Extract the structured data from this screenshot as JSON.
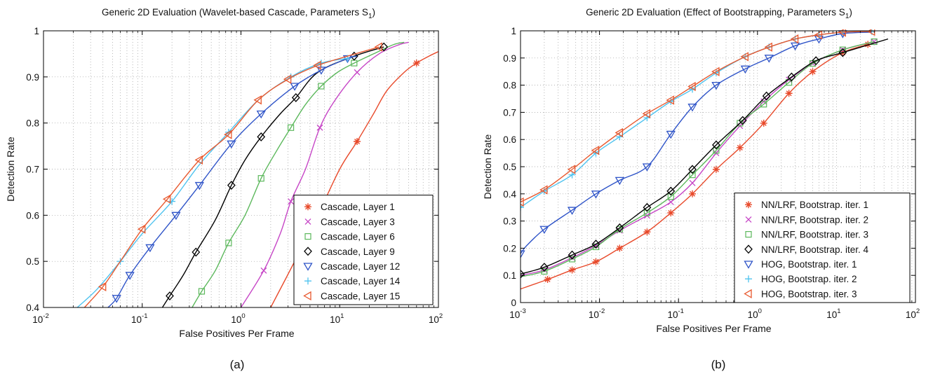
{
  "colors": {
    "red": "#e8492a",
    "magenta": "#c645c6",
    "green": "#5cb85c",
    "black": "#000000",
    "blue": "#2f54c8",
    "cyan": "#4fc3ef",
    "orange": "#e8592f"
  },
  "chart_data": [
    {
      "type": "line",
      "title": "Generic 2D Evaluation (Wavelet-based Cascade, Parameters S",
      "title_sub": "1",
      "title_end": ")",
      "xlabel": "False Positives Per Frame",
      "ylabel": "Detection Rate",
      "caption": "(a)",
      "x_scale": "log",
      "xlim": [
        0.01,
        100
      ],
      "ylim": [
        0.4,
        1
      ],
      "x_ticks": [
        {
          "base": "10",
          "exp": "-2"
        },
        {
          "base": "10",
          "exp": "-1"
        },
        {
          "base": "10",
          "exp": "0"
        },
        {
          "base": "10",
          "exp": "1"
        },
        {
          "base": "10",
          "exp": "2"
        }
      ],
      "y_ticks": [
        "0.4",
        "0.5",
        "0.6",
        "0.7",
        "0.8",
        "0.9",
        "1"
      ],
      "grid": "on (dotted)",
      "legend_position": "bottom-right",
      "series": [
        {
          "name": "Cascade, Layer 1",
          "color": "red",
          "marker": "asterisk",
          "x": [
            2.0,
            3.5,
            6.0,
            10,
            15,
            22,
            30,
            45,
            60,
            80,
            100
          ],
          "y": [
            0.4,
            0.5,
            0.6,
            0.7,
            0.76,
            0.82,
            0.87,
            0.91,
            0.93,
            0.945,
            0.955
          ]
        },
        {
          "name": "Cascade, Layer 3",
          "color": "magenta",
          "marker": "x",
          "x": [
            1.0,
            1.7,
            2.5,
            3.2,
            4.5,
            6.3,
            9,
            15,
            25,
            40,
            50
          ],
          "y": [
            0.4,
            0.48,
            0.56,
            0.63,
            0.7,
            0.79,
            0.85,
            0.91,
            0.95,
            0.97,
            0.975
          ]
        },
        {
          "name": "Cascade, Layer 6",
          "color": "green",
          "marker": "square",
          "x": [
            0.32,
            0.4,
            0.55,
            0.75,
            1.1,
            1.6,
            2.3,
            3.2,
            4.5,
            6.5,
            9.5,
            14,
            22,
            35,
            45
          ],
          "y": [
            0.4,
            0.435,
            0.48,
            0.54,
            0.6,
            0.68,
            0.74,
            0.79,
            0.84,
            0.88,
            0.91,
            0.93,
            0.95,
            0.97,
            0.975
          ]
        },
        {
          "name": "Cascade, Layer 9",
          "color": "black",
          "marker": "diamond",
          "x": [
            0.16,
            0.19,
            0.26,
            0.35,
            0.55,
            0.8,
            1.1,
            1.6,
            2.5,
            3.6,
            6.0,
            14,
            28
          ],
          "y": [
            0.4,
            0.425,
            0.47,
            0.52,
            0.59,
            0.665,
            0.72,
            0.77,
            0.82,
            0.855,
            0.91,
            0.945,
            0.965
          ]
        },
        {
          "name": "Cascade, Layer 12",
          "color": "blue",
          "marker": "triangle-down",
          "x": [
            0.045,
            0.055,
            0.075,
            0.12,
            0.22,
            0.38,
            0.8,
            1.6,
            3.5,
            6.5,
            12,
            15
          ],
          "y": [
            0.4,
            0.42,
            0.47,
            0.53,
            0.6,
            0.665,
            0.755,
            0.82,
            0.88,
            0.915,
            0.94,
            0.945
          ]
        },
        {
          "name": "Cascade, Layer 14",
          "color": "cyan",
          "marker": "plus",
          "x": [
            0.022,
            0.035,
            0.06,
            0.1,
            0.2,
            0.38,
            0.75,
            1.5,
            3.2,
            6.5,
            12
          ],
          "y": [
            0.4,
            0.44,
            0.5,
            0.56,
            0.63,
            0.71,
            0.78,
            0.85,
            0.9,
            0.93,
            0.94
          ]
        },
        {
          "name": "Cascade, Layer 15",
          "color": "orange",
          "marker": "triangle-left",
          "x": [
            0.026,
            0.04,
            0.06,
            0.1,
            0.18,
            0.38,
            0.75,
            1.5,
            3.0,
            6.0,
            12,
            25
          ],
          "y": [
            0.4,
            0.445,
            0.5,
            0.57,
            0.635,
            0.72,
            0.775,
            0.85,
            0.895,
            0.925,
            0.945,
            0.965
          ]
        }
      ],
      "markers_every": {
        "asterisk": [
          4,
          8
        ],
        "x": [
          3,
          5,
          7,
          1
        ],
        "square": [
          1,
          3,
          5,
          7,
          9,
          11
        ],
        "diamond": [
          1,
          3,
          5,
          7,
          9,
          11,
          12
        ],
        "triangle-down": [
          1,
          2,
          3,
          4,
          5,
          6,
          7,
          8,
          9,
          10
        ],
        "plus": [
          2,
          4,
          6,
          8,
          9,
          10
        ],
        "triangle-left": [
          1,
          3,
          4,
          5,
          6,
          7,
          8,
          9,
          11
        ]
      }
    },
    {
      "type": "line",
      "title": "Generic 2D Evaluation (Effect of Bootstrapping, Parameters S",
      "title_sub": "1",
      "title_end": ")",
      "xlabel": "False Positives Per Frame",
      "ylabel": "Detection Rate",
      "caption": "(b)",
      "x_scale": "log",
      "xlim": [
        0.001,
        100
      ],
      "ylim": [
        0,
        1
      ],
      "x_ticks": [
        {
          "base": "10",
          "exp": "-3"
        },
        {
          "base": "10",
          "exp": "-2"
        },
        {
          "base": "10",
          "exp": "-1"
        },
        {
          "base": "10",
          "exp": "0"
        },
        {
          "base": "10",
          "exp": "1"
        },
        {
          "base": "10",
          "exp": "2"
        }
      ],
      "y_ticks": [
        "0",
        "0.1",
        "0.2",
        "0.3",
        "0.4",
        "0.5",
        "0.6",
        "0.7",
        "0.8",
        "0.9",
        "1"
      ],
      "grid": "on (dotted)",
      "legend_position": "bottom-right",
      "series": [
        {
          "name": "NN/LRF, Bootstrap. iter. 1",
          "color": "red",
          "marker": "asterisk",
          "x": [
            0.001,
            0.0022,
            0.0045,
            0.009,
            0.018,
            0.04,
            0.08,
            0.15,
            0.3,
            0.6,
            1.2,
            2.5,
            5,
            12,
            25
          ],
          "y": [
            0.05,
            0.085,
            0.12,
            0.15,
            0.2,
            0.26,
            0.33,
            0.4,
            0.49,
            0.57,
            0.66,
            0.77,
            0.85,
            0.92,
            0.95
          ]
        },
        {
          "name": "NN/LRF, Bootstrap. iter. 2",
          "color": "magenta",
          "marker": "x",
          "x": [
            0.001,
            0.002,
            0.0045,
            0.009,
            0.018,
            0.04,
            0.08,
            0.15,
            0.3,
            0.6,
            1.2,
            2.5,
            5,
            12,
            30
          ],
          "y": [
            0.1,
            0.12,
            0.165,
            0.21,
            0.265,
            0.32,
            0.37,
            0.44,
            0.55,
            0.65,
            0.74,
            0.82,
            0.88,
            0.93,
            0.96
          ]
        },
        {
          "name": "NN/LRF, Bootstrap. iter. 3",
          "color": "green",
          "marker": "square",
          "x": [
            0.001,
            0.002,
            0.0045,
            0.009,
            0.018,
            0.04,
            0.08,
            0.15,
            0.3,
            0.6,
            1.2,
            2.5,
            5,
            12,
            30
          ],
          "y": [
            0.095,
            0.115,
            0.16,
            0.205,
            0.27,
            0.33,
            0.39,
            0.47,
            0.56,
            0.66,
            0.73,
            0.81,
            0.88,
            0.93,
            0.96
          ]
        },
        {
          "name": "NN/LRF, Bootstrap. iter. 4",
          "color": "black",
          "marker": "diamond",
          "x": [
            0.001,
            0.002,
            0.0045,
            0.009,
            0.018,
            0.04,
            0.08,
            0.15,
            0.3,
            0.65,
            1.3,
            2.7,
            5.5,
            12,
            45
          ],
          "y": [
            0.105,
            0.13,
            0.175,
            0.215,
            0.275,
            0.35,
            0.41,
            0.49,
            0.58,
            0.67,
            0.76,
            0.83,
            0.89,
            0.92,
            0.97
          ]
        },
        {
          "name": "HOG, Bootstrap. iter. 1",
          "color": "blue",
          "marker": "triangle-down",
          "x": [
            0.001,
            0.0012,
            0.002,
            0.0045,
            0.009,
            0.018,
            0.04,
            0.08,
            0.15,
            0.3,
            0.7,
            1.4,
            3,
            6,
            12,
            28
          ],
          "y": [
            0.18,
            0.21,
            0.27,
            0.34,
            0.4,
            0.45,
            0.5,
            0.62,
            0.72,
            0.8,
            0.86,
            0.9,
            0.945,
            0.97,
            0.99,
            0.995
          ]
        },
        {
          "name": "HOG, Bootstrap. iter. 2",
          "color": "cyan",
          "marker": "plus",
          "x": [
            0.001,
            0.002,
            0.0045,
            0.009,
            0.018,
            0.04,
            0.08,
            0.15,
            0.3,
            0.7,
            1.4,
            3,
            6,
            12,
            28
          ],
          "y": [
            0.35,
            0.41,
            0.47,
            0.55,
            0.61,
            0.68,
            0.74,
            0.785,
            0.845,
            0.905,
            0.94,
            0.97,
            0.985,
            0.995,
            0.998
          ]
        },
        {
          "name": "HOG, Bootstrap. iter. 3",
          "color": "orange",
          "marker": "triangle-left",
          "x": [
            0.001,
            0.002,
            0.0045,
            0.009,
            0.018,
            0.04,
            0.08,
            0.15,
            0.3,
            0.7,
            1.4,
            3,
            6,
            12,
            28
          ],
          "y": [
            0.37,
            0.415,
            0.49,
            0.56,
            0.625,
            0.695,
            0.745,
            0.795,
            0.85,
            0.905,
            0.94,
            0.97,
            0.985,
            0.995,
            0.998
          ]
        }
      ],
      "markers_every": {
        "asterisk": [
          1,
          2,
          3,
          4,
          5,
          6,
          7,
          8,
          9,
          10,
          11,
          12,
          13,
          14
        ],
        "x": [
          1,
          2,
          3,
          4,
          5,
          6,
          7,
          8,
          9,
          10,
          11,
          12,
          13,
          14
        ],
        "square": [
          1,
          2,
          3,
          4,
          5,
          6,
          7,
          8,
          9,
          10,
          11,
          12,
          13,
          14
        ],
        "diamond": [
          0,
          1,
          2,
          3,
          4,
          5,
          6,
          7,
          8,
          9,
          10,
          11,
          12,
          13
        ],
        "triangle-down": [
          0,
          2,
          3,
          4,
          5,
          6,
          7,
          8,
          9,
          10,
          11,
          12,
          13,
          14
        ],
        "plus": [
          0,
          1,
          2,
          3,
          4,
          5,
          6,
          7,
          8,
          9,
          10,
          11,
          12,
          13,
          14
        ],
        "triangle-left": [
          0,
          1,
          2,
          3,
          4,
          5,
          6,
          7,
          8,
          9,
          10,
          11,
          12,
          13,
          14
        ]
      }
    }
  ]
}
